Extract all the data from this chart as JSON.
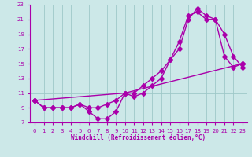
{
  "xlabel": "Windchill (Refroidissement éolien,°C)",
  "background_color": "#cce8e8",
  "grid_color": "#9ec8c8",
  "line_color": "#aa00aa",
  "xlim": [
    -0.5,
    23.5
  ],
  "ylim": [
    7,
    23
  ],
  "xticks": [
    0,
    1,
    2,
    3,
    4,
    5,
    6,
    7,
    8,
    9,
    10,
    11,
    12,
    13,
    14,
    15,
    16,
    17,
    18,
    19,
    20,
    21,
    22,
    23
  ],
  "yticks": [
    7,
    9,
    11,
    13,
    15,
    17,
    19,
    21,
    23
  ],
  "curve1_x": [
    0,
    1,
    2,
    3,
    4,
    5,
    6,
    7,
    8,
    9,
    10,
    11,
    12,
    13,
    14,
    15,
    16,
    17,
    18,
    19,
    20,
    21,
    22,
    23
  ],
  "curve1_y": [
    10,
    9,
    9,
    9,
    9,
    9.5,
    8.5,
    7.5,
    7.5,
    8.5,
    11,
    10.5,
    11,
    12,
    13,
    15.5,
    18,
    21.5,
    22,
    21,
    21,
    19,
    16,
    14.5
  ],
  "curve2_x": [
    0,
    1,
    2,
    3,
    4,
    5,
    6,
    7,
    8,
    9,
    10,
    11,
    12,
    13,
    14,
    15,
    16,
    17,
    18,
    19,
    20,
    21,
    22,
    23
  ],
  "curve2_y": [
    10,
    9,
    9,
    9,
    9,
    9.5,
    9,
    9,
    9.5,
    10,
    11,
    11,
    12,
    13,
    14,
    15.5,
    17,
    21,
    22.5,
    21.5,
    21,
    16,
    14.5,
    15
  ],
  "curve3_x": [
    0,
    10,
    23
  ],
  "curve3_y": [
    10,
    11,
    15
  ],
  "markersize": 3,
  "linewidth": 1.0
}
